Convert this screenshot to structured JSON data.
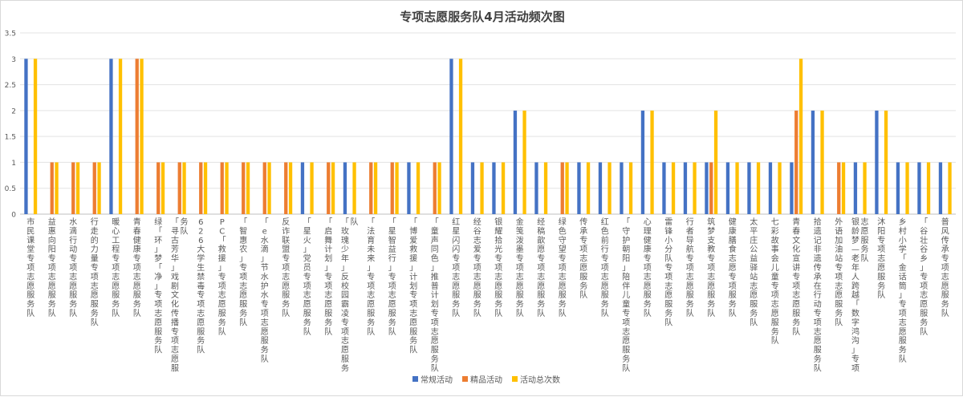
{
  "chart_data": {
    "type": "bar",
    "title": "专项志愿服务队4月活动频次图",
    "xlabel": "",
    "ylabel": "",
    "ylim": [
      0,
      3.5
    ],
    "yticks": [
      "0",
      "0.5",
      "1",
      "1.5",
      "2",
      "2.5",
      "3",
      "3.5"
    ],
    "grid": true,
    "legend_position": "bottom",
    "categories": [
      "市民课堂专项志愿服务队",
      "益惠向阳专项志愿服务队",
      "水滴行动专项志愿服务队",
      "行走的力量专项志愿服务队",
      "暖心工程专项志愿服务队",
      "青春健康专项志愿服务队",
      "绿「环」梦「净」专项志愿服务队",
      "「寻古芳华」戏剧文化传播专项志愿服务队",
      "626大学生禁毒专项志愿服务队",
      "PC「救援」专项志愿服务队",
      "「智惠农」专项志愿服务队",
      "「e水滴」节水护水专项志愿服务队",
      "反诈联盟专项志愿服务队",
      "「星火」党员专项志愿服务队",
      "「启舞计划」专项志愿服务队",
      "「玫瑰少年」反校园霸凌专项志愿服务队",
      "「法育未来」专项志愿服务队",
      "「星智益行」专项志愿服务队",
      "「博爱救援」计划专项志愿服务队",
      "「童声同色」推普计划专项志愿服务队",
      "红星闪闪专项志愿服务队",
      "经谷志爱专项志愿服务队",
      "银耀拾光专项志愿服务队",
      "金笺泼墨专项志愿服务队",
      "经稿歆愿专项志愿服务队",
      "绿色守望专项志愿服务队",
      "传承专项志愿服务队",
      "红色前行专项志愿服务队",
      "「守护朝阳」陪伴儿童专项志愿服务队",
      "心理健康专项志愿服务队",
      "雷锋小分队专项志愿服务队",
      "行者导航专项志愿服务队",
      "筑梦支教专项志愿服务队",
      "健康膳食志愿专项服务队",
      "太平庄公益驿站志愿服务队",
      "七彩故事会儿童专项志愿服务队",
      "青春文化宣讲专项志愿服务队",
      "拾遗记非遗传承在行动专项志愿服务队",
      "外语加油站专项志愿服务队",
      "银龄梦—老年人跨越「数字鸿沟」专项志愿服务队",
      "沐阳专项志愿服务队",
      "乡村小学「金话筒」专项志愿服务队",
      "「谷壮谷乡」专项志愿服务队",
      "普风传承专项志愿服务队"
    ],
    "series": [
      {
        "name": "常规活动",
        "color": "#4472c4",
        "values": [
          3,
          0,
          0,
          0,
          3,
          0,
          0,
          0,
          0,
          0,
          0,
          0,
          0,
          1,
          0,
          1,
          0,
          0,
          1,
          0,
          3,
          1,
          1,
          2,
          1,
          0,
          1,
          1,
          1,
          2,
          1,
          1,
          1,
          1,
          1,
          1,
          1,
          2,
          0,
          1,
          2,
          1,
          1,
          1
        ]
      },
      {
        "name": "精品活动",
        "color": "#ed7d31",
        "values": [
          0,
          1,
          1,
          1,
          0,
          3,
          1,
          1,
          1,
          1,
          1,
          1,
          1,
          0,
          1,
          0,
          1,
          1,
          0,
          1,
          0,
          0,
          0,
          0,
          0,
          1,
          0,
          0,
          0,
          0,
          0,
          0,
          1,
          0,
          0,
          0,
          2,
          0,
          1,
          0,
          0,
          0,
          0,
          0
        ]
      },
      {
        "name": "活动总次数",
        "color": "#ffc000",
        "values": [
          3,
          1,
          1,
          1,
          3,
          3,
          1,
          1,
          1,
          1,
          1,
          1,
          1,
          1,
          1,
          1,
          1,
          1,
          1,
          1,
          3,
          1,
          1,
          2,
          1,
          1,
          1,
          1,
          1,
          2,
          1,
          1,
          2,
          1,
          1,
          1,
          3,
          2,
          1,
          1,
          2,
          1,
          1,
          1
        ]
      }
    ]
  }
}
